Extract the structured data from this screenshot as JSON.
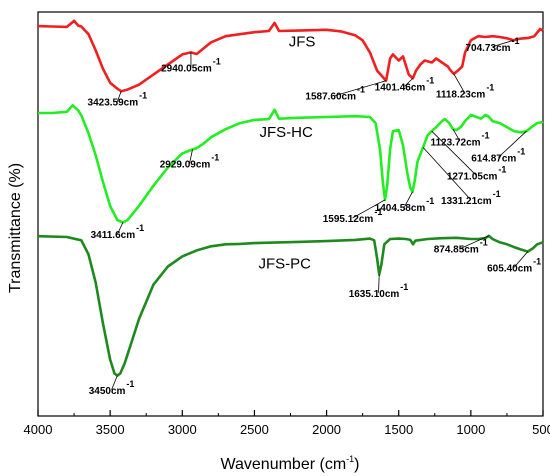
{
  "chart_data": {
    "type": "line",
    "title": "",
    "xlabel": "Wavenumber (cm",
    "xlabel_sup": "-1",
    "xlabel_tail": ")",
    "ylabel": "Transmittance (%)",
    "xlim": [
      4000,
      500
    ],
    "x_reversed": true,
    "x_ticks": [
      4000,
      3500,
      3000,
      2500,
      2000,
      1500,
      1000,
      500
    ],
    "x_tick_labels": [
      "4000",
      "3500",
      "3000",
      "2500",
      "2000",
      "1500",
      "1000",
      "500"
    ],
    "y_units": "relative transmittance, stacked offset (0 = bottom of frame, 100 = top)",
    "ylim": [
      0,
      100
    ],
    "grid": false,
    "legend": "none",
    "series": [
      {
        "name": "JFS",
        "color": "#f02020",
        "points": [
          [
            4000,
            96.5
          ],
          [
            3900,
            96.4
          ],
          [
            3800,
            96.3
          ],
          [
            3750,
            97.8
          ],
          [
            3720,
            96.6
          ],
          [
            3700,
            96.4
          ],
          [
            3650,
            94.5
          ],
          [
            3600,
            90.5
          ],
          [
            3550,
            86
          ],
          [
            3500,
            82.5
          ],
          [
            3450,
            81
          ],
          [
            3423.59,
            80.4
          ],
          [
            3380,
            80.8
          ],
          [
            3300,
            82
          ],
          [
            3200,
            84.5
          ],
          [
            3100,
            87
          ],
          [
            3000,
            89.5
          ],
          [
            2940.05,
            90
          ],
          [
            2900,
            89.6
          ],
          [
            2860,
            90.8
          ],
          [
            2800,
            92.5
          ],
          [
            2700,
            94
          ],
          [
            2600,
            94.5
          ],
          [
            2500,
            95
          ],
          [
            2400,
            95.3
          ],
          [
            2360,
            97.3
          ],
          [
            2330,
            95.3
          ],
          [
            2200,
            95.4
          ],
          [
            2000,
            95.6
          ],
          [
            1900,
            95.2
          ],
          [
            1800,
            94.2
          ],
          [
            1750,
            93
          ],
          [
            1700,
            90
          ],
          [
            1650,
            85.5
          ],
          [
            1600,
            83.5
          ],
          [
            1587.6,
            83
          ],
          [
            1560,
            88.5
          ],
          [
            1540,
            89.5
          ],
          [
            1500,
            88
          ],
          [
            1470,
            89
          ],
          [
            1430,
            84.5
          ],
          [
            1401.46,
            83.6
          ],
          [
            1380,
            85.5
          ],
          [
            1350,
            87
          ],
          [
            1320,
            88
          ],
          [
            1271,
            87.5
          ],
          [
            1240,
            88.5
          ],
          [
            1200,
            87.5
          ],
          [
            1160,
            86.5
          ],
          [
            1140,
            85.5
          ],
          [
            1118.23,
            84.7
          ],
          [
            1090,
            85.5
          ],
          [
            1060,
            86.5
          ],
          [
            1040,
            90
          ],
          [
            1000,
            93
          ],
          [
            950,
            94
          ],
          [
            900,
            93.8
          ],
          [
            850,
            94
          ],
          [
            800,
            93.8
          ],
          [
            750,
            93.5
          ],
          [
            704.73,
            93
          ],
          [
            660,
            93.4
          ],
          [
            600,
            93.6
          ],
          [
            560,
            94
          ],
          [
            520,
            95.8
          ],
          [
            500,
            95.4
          ]
        ]
      },
      {
        "name": "JFS-HC",
        "color": "#22ee22",
        "points": [
          [
            4000,
            75
          ],
          [
            3900,
            75
          ],
          [
            3800,
            75.3
          ],
          [
            3760,
            76.9
          ],
          [
            3720,
            75.6
          ],
          [
            3700,
            74.4
          ],
          [
            3650,
            70
          ],
          [
            3600,
            64.5
          ],
          [
            3550,
            58
          ],
          [
            3500,
            52
          ],
          [
            3450,
            48.5
          ],
          [
            3411.6,
            47.9
          ],
          [
            3380,
            48.5
          ],
          [
            3300,
            52
          ],
          [
            3200,
            57
          ],
          [
            3100,
            61.5
          ],
          [
            3000,
            65
          ],
          [
            2929.09,
            66
          ],
          [
            2900,
            66.3
          ],
          [
            2850,
            67.5
          ],
          [
            2800,
            69
          ],
          [
            2700,
            71
          ],
          [
            2600,
            72.5
          ],
          [
            2500,
            73.3
          ],
          [
            2400,
            73.5
          ],
          [
            2360,
            75.8
          ],
          [
            2330,
            73.6
          ],
          [
            2200,
            73.8
          ],
          [
            2000,
            74
          ],
          [
            1800,
            74.2
          ],
          [
            1700,
            74
          ],
          [
            1660,
            72.5
          ],
          [
            1630,
            66
          ],
          [
            1610,
            58
          ],
          [
            1595.12,
            53.5
          ],
          [
            1580,
            57
          ],
          [
            1560,
            66
          ],
          [
            1540,
            70.5
          ],
          [
            1500,
            70.8
          ],
          [
            1470,
            67
          ],
          [
            1440,
            60
          ],
          [
            1420,
            56.5
          ],
          [
            1404.58,
            55.5
          ],
          [
            1390,
            58
          ],
          [
            1370,
            63
          ],
          [
            1331.21,
            66.5
          ],
          [
            1300,
            69.5
          ],
          [
            1271.05,
            70.5
          ],
          [
            1240,
            71.5
          ],
          [
            1200,
            73
          ],
          [
            1180,
            73.5
          ],
          [
            1150,
            72.5
          ],
          [
            1123.72,
            71
          ],
          [
            1100,
            70.8
          ],
          [
            1070,
            71.5
          ],
          [
            1040,
            73
          ],
          [
            1000,
            74.5
          ],
          [
            960,
            74
          ],
          [
            930,
            73.6
          ],
          [
            900,
            74.5
          ],
          [
            880,
            74.2
          ],
          [
            850,
            73
          ],
          [
            800,
            72.5
          ],
          [
            750,
            71.5
          ],
          [
            700,
            70.5
          ],
          [
            650,
            70.2
          ],
          [
            614.87,
            70.5
          ],
          [
            580,
            71.5
          ],
          [
            540,
            72.5
          ],
          [
            500,
            72.8
          ]
        ]
      },
      {
        "name": "JFS-PC",
        "color": "#1e8a1e",
        "points": [
          [
            4000,
            44.5
          ],
          [
            3800,
            44.3
          ],
          [
            3700,
            43.5
          ],
          [
            3650,
            40
          ],
          [
            3600,
            33
          ],
          [
            3550,
            23
          ],
          [
            3500,
            14
          ],
          [
            3470,
            10.5
          ],
          [
            3450,
            10
          ],
          [
            3430,
            10.5
          ],
          [
            3400,
            13
          ],
          [
            3350,
            18.5
          ],
          [
            3300,
            24
          ],
          [
            3200,
            32.5
          ],
          [
            3100,
            37
          ],
          [
            3000,
            39.5
          ],
          [
            2900,
            41
          ],
          [
            2800,
            42
          ],
          [
            2700,
            42.5
          ],
          [
            2600,
            42.6
          ],
          [
            2500,
            42.8
          ],
          [
            2400,
            42.9
          ],
          [
            2300,
            43
          ],
          [
            2200,
            43.1
          ],
          [
            2000,
            43.3
          ],
          [
            1800,
            43.6
          ],
          [
            1700,
            43.9
          ],
          [
            1670,
            43.5
          ],
          [
            1650,
            39
          ],
          [
            1635.1,
            35
          ],
          [
            1620,
            37.5
          ],
          [
            1600,
            42.5
          ],
          [
            1560,
            43.8
          ],
          [
            1500,
            43.9
          ],
          [
            1450,
            43.8
          ],
          [
            1420,
            43.6
          ],
          [
            1400,
            42.5
          ],
          [
            1385,
            43.4
          ],
          [
            1300,
            43.8
          ],
          [
            1200,
            44
          ],
          [
            1100,
            44.1
          ],
          [
            1000,
            43.8
          ],
          [
            950,
            43.8
          ],
          [
            900,
            44
          ],
          [
            874.85,
            44.6
          ],
          [
            850,
            43.8
          ],
          [
            800,
            43
          ],
          [
            750,
            42.5
          ],
          [
            700,
            41.8
          ],
          [
            650,
            41.2
          ],
          [
            605.4,
            40.7
          ],
          [
            570,
            41.5
          ],
          [
            540,
            42.5
          ],
          [
            500,
            43
          ]
        ]
      }
    ],
    "series_labels": [
      {
        "text": "JFS",
        "x": 2170,
        "y": 91.5
      },
      {
        "text": "JFS-HC",
        "x": 2280,
        "y": 69
      },
      {
        "text": "JFS-PC",
        "x": 2290,
        "y": 36.5
      }
    ],
    "annotations": [
      {
        "text": "3423.59cm",
        "sup": "-1",
        "series": 0,
        "peak_x": 3423.59,
        "x": 3450,
        "y": 76.8
      },
      {
        "text": "2940.05cm",
        "sup": "-1",
        "series": 0,
        "peak_x": 2940.05,
        "x": 2940,
        "y": 85.3
      },
      {
        "text": "1587.60cm",
        "sup": "-1",
        "series": 0,
        "peak_x": 1587.6,
        "x": 1940,
        "y": 78.3
      },
      {
        "text": "1401.46cm",
        "sup": "-1",
        "series": 0,
        "peak_x": 1401.46,
        "x": 1460,
        "y": 80.6
      },
      {
        "text": "1118.23cm",
        "sup": "-1",
        "series": 0,
        "peak_x": 1118.23,
        "x": 1040,
        "y": 78.8
      },
      {
        "text": "704.73cm",
        "sup": "-1",
        "series": 0,
        "peak_x": 704.73,
        "x": 850,
        "y": 90.4
      },
      {
        "text": "2929.09cm",
        "sup": "-1",
        "series": 1,
        "peak_x": 2929.09,
        "x": 2950,
        "y": 61.5
      },
      {
        "text": "3411.6cm",
        "sup": "-1",
        "series": 1,
        "peak_x": 3411.6,
        "x": 3450,
        "y": 44
      },
      {
        "text": "1595.12cm",
        "sup": "-1",
        "series": 1,
        "peak_x": 1595.12,
        "x": 1820,
        "y": 48
      },
      {
        "text": "1404.58cm",
        "sup": "-1",
        "series": 1,
        "peak_x": 1404.58,
        "x": 1460,
        "y": 50.8
      },
      {
        "text": "1123.72cm",
        "sup": "-1",
        "series": 1,
        "peak_x": 1123.72,
        "x": 1075,
        "y": 67
      },
      {
        "text": "614.87cm",
        "sup": "-1",
        "series": 1,
        "peak_x": 614.87,
        "x": 810,
        "y": 63
      },
      {
        "text": "1271.05cm",
        "sup": "-1",
        "series": 1,
        "peak_x": 1271.05,
        "x": 960,
        "y": 58.5
      },
      {
        "text": "1331.21cm",
        "sup": "-1",
        "series": 1,
        "peak_x": 1331.21,
        "x": 1000,
        "y": 52.5
      },
      {
        "text": "1635.10cm",
        "sup": "-1",
        "series": 2,
        "peak_x": 1635.1,
        "x": 1640,
        "y": 29.5
      },
      {
        "text": "874.85cm",
        "sup": "-1",
        "series": 2,
        "peak_x": 874.85,
        "x": 1070,
        "y": 40.5
      },
      {
        "text": "605.40cm",
        "sup": "-1",
        "series": 2,
        "peak_x": 605.4,
        "x": 700,
        "y": 35.8
      },
      {
        "text": "3450cm",
        "sup": "-1",
        "series": 2,
        "peak_x": 3450,
        "x": 3490,
        "y": 5.5
      }
    ]
  }
}
